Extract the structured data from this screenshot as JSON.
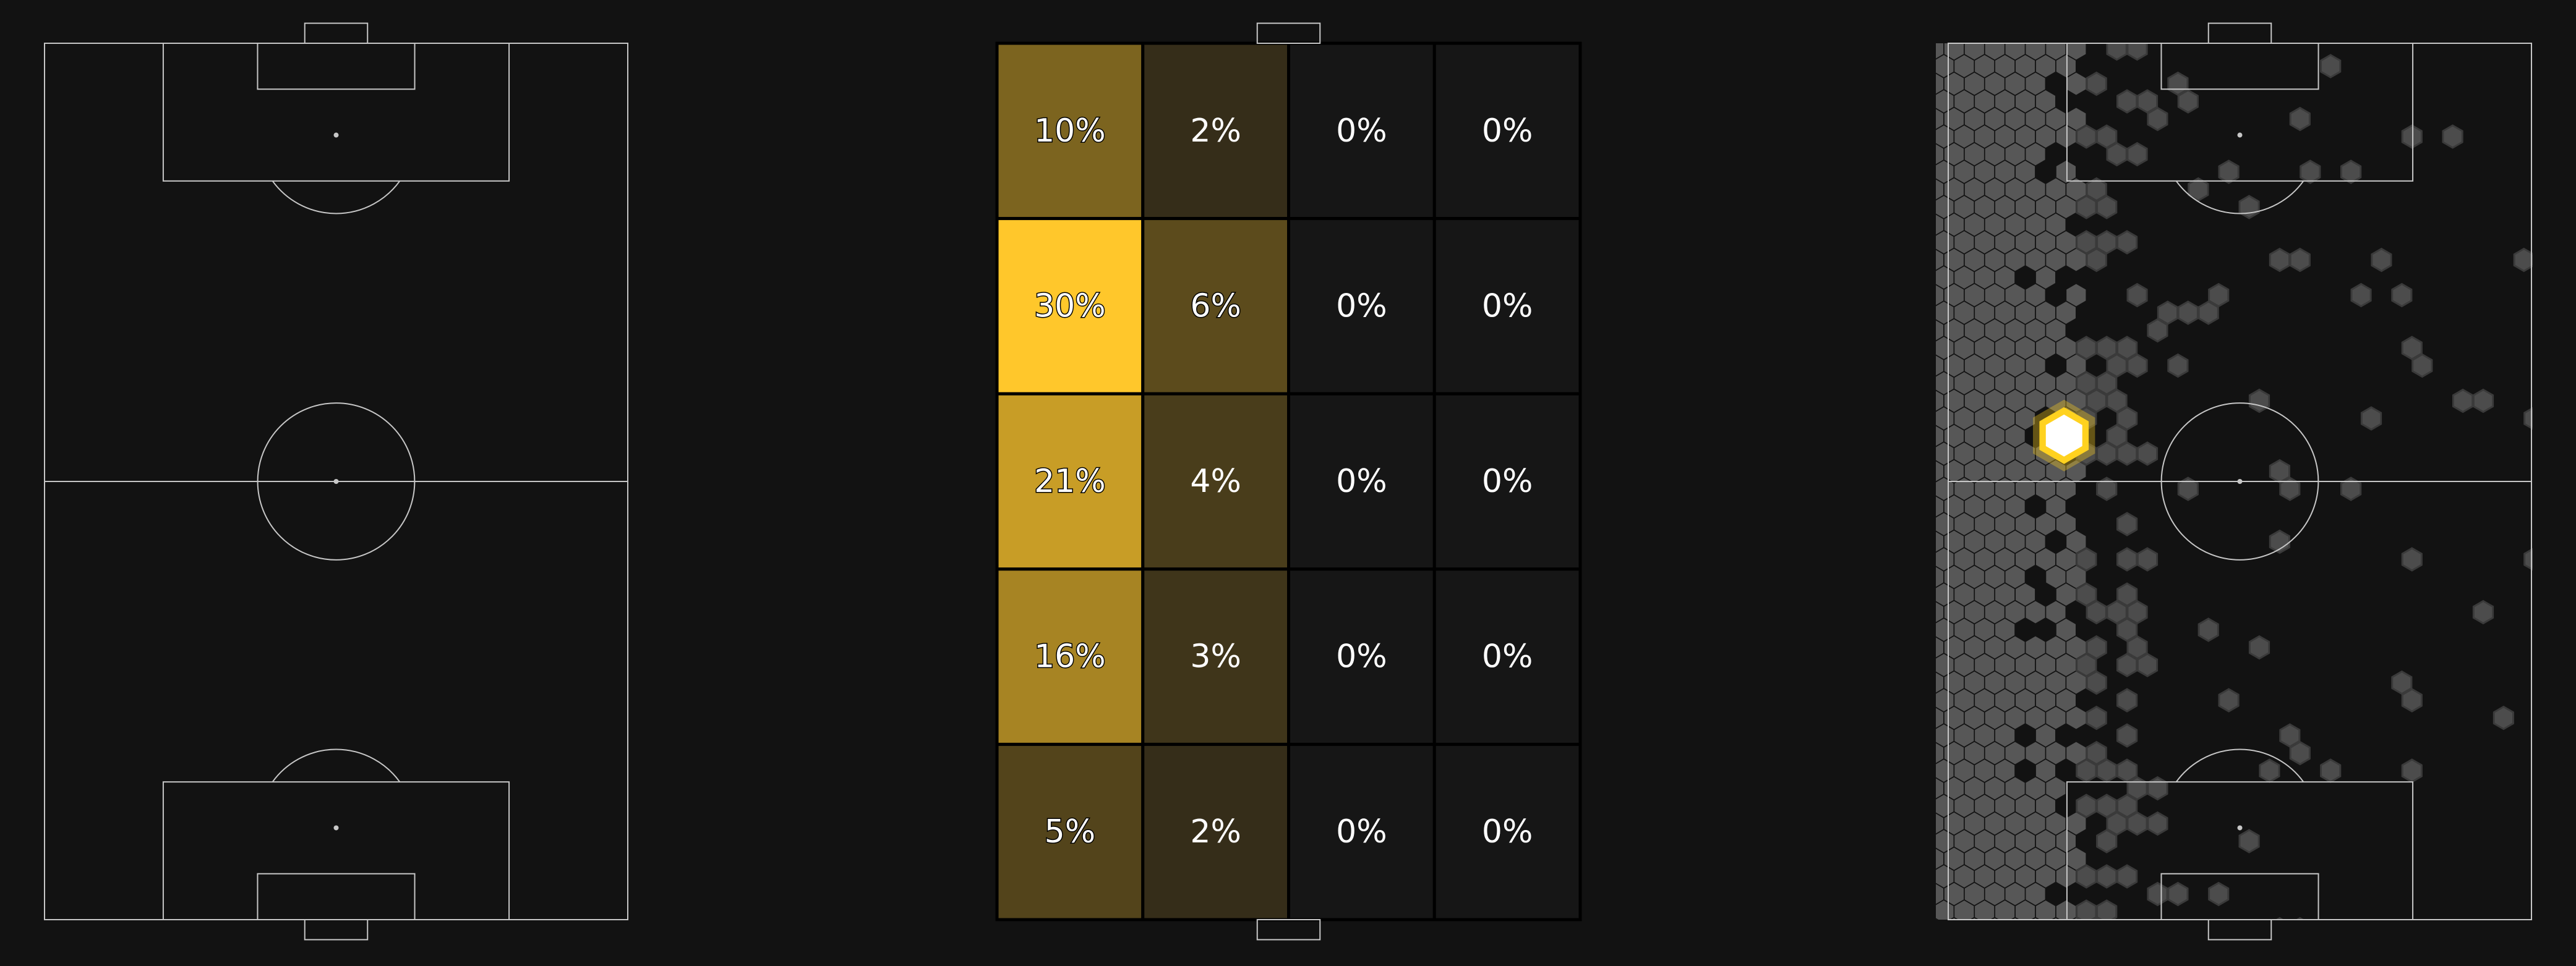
{
  "colors": {
    "background": "#121212",
    "pitch_lines": "#c7c7c7",
    "heat_low": "#161616",
    "heat_high": "#ffc72b",
    "hex_fill": "#575757",
    "highlight": "#ffd21f",
    "text": "#ffffff",
    "grid_border": "#000000"
  },
  "chart_data": [
    {
      "type": "pitch",
      "panel": "left",
      "description": "blank vertical pitch"
    },
    {
      "type": "heatmap",
      "panel": "center",
      "rows": 5,
      "cols": 4,
      "values": [
        [
          10,
          2,
          0,
          0
        ],
        [
          30,
          6,
          0,
          0
        ],
        [
          21,
          4,
          0,
          0
        ],
        [
          16,
          3,
          0,
          0
        ],
        [
          5,
          2,
          0,
          0
        ]
      ],
      "labels": [
        [
          "10%",
          "2%",
          "0%",
          "0%"
        ],
        [
          "30%",
          "6%",
          "0%",
          "0%"
        ],
        [
          "21%",
          "4%",
          "0%",
          "0%"
        ],
        [
          "16%",
          "3%",
          "0%",
          "0%"
        ],
        [
          "5%",
          "2%",
          "0%",
          "0%"
        ]
      ]
    },
    {
      "type": "hexbin",
      "panel": "right",
      "density": "concentrated along the left touchline, thinning toward the centre",
      "peak": {
        "x": 13.5,
        "y": 58.0
      }
    }
  ]
}
